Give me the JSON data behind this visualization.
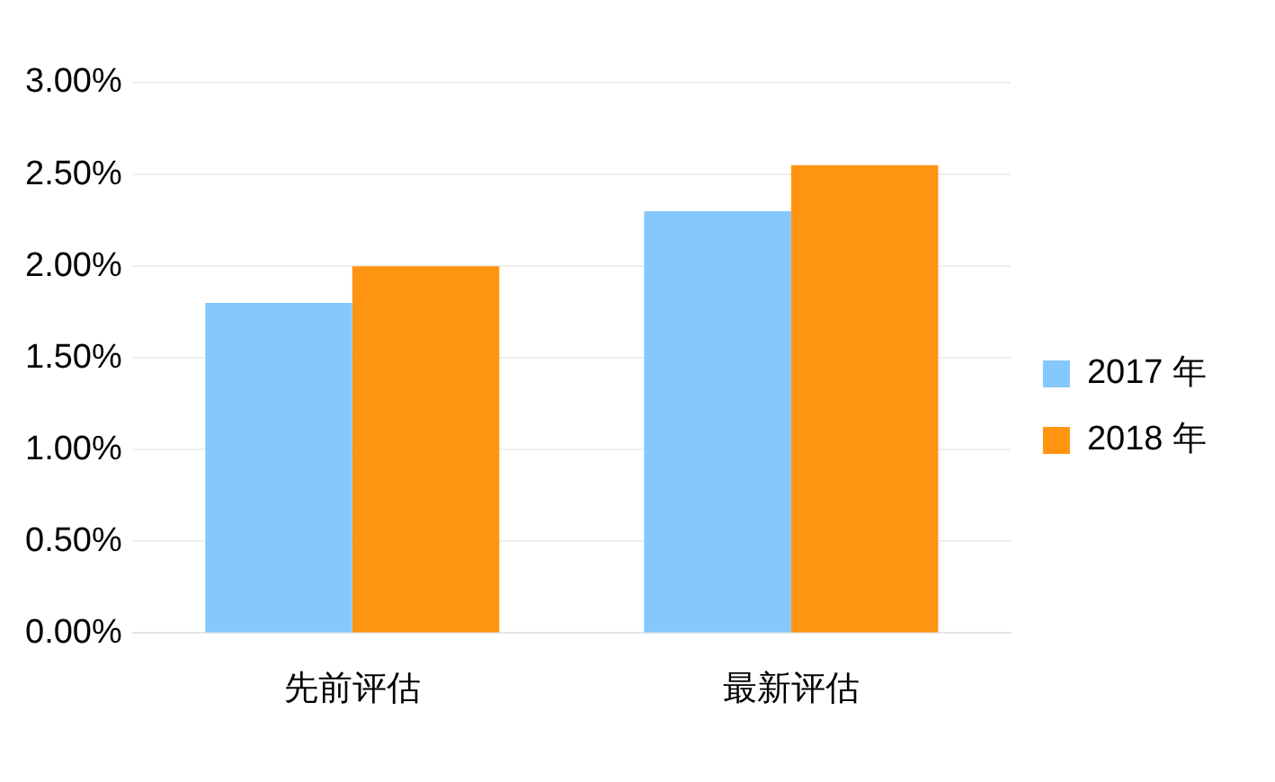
{
  "chart_data": {
    "type": "bar",
    "categories": [
      "先前评估",
      "最新评估"
    ],
    "series": [
      {
        "name": "2017 年",
        "color": "#85c8fd",
        "values": [
          1.8,
          2.3
        ]
      },
      {
        "name": "2018 年",
        "color": "#ff9410",
        "values": [
          2.0,
          2.55
        ]
      }
    ],
    "ylim": [
      0,
      3
    ],
    "yticks": [
      {
        "value": 0,
        "label": "0.00%"
      },
      {
        "value": 0.5,
        "label": "0.50%"
      },
      {
        "value": 1,
        "label": "1.00%"
      },
      {
        "value": 1.5,
        "label": "1.50%"
      },
      {
        "value": 2,
        "label": "2.00%"
      },
      {
        "value": 2.5,
        "label": "2.50%"
      },
      {
        "value": 3,
        "label": "3.00%"
      }
    ],
    "grid": "y",
    "legend": "right"
  }
}
